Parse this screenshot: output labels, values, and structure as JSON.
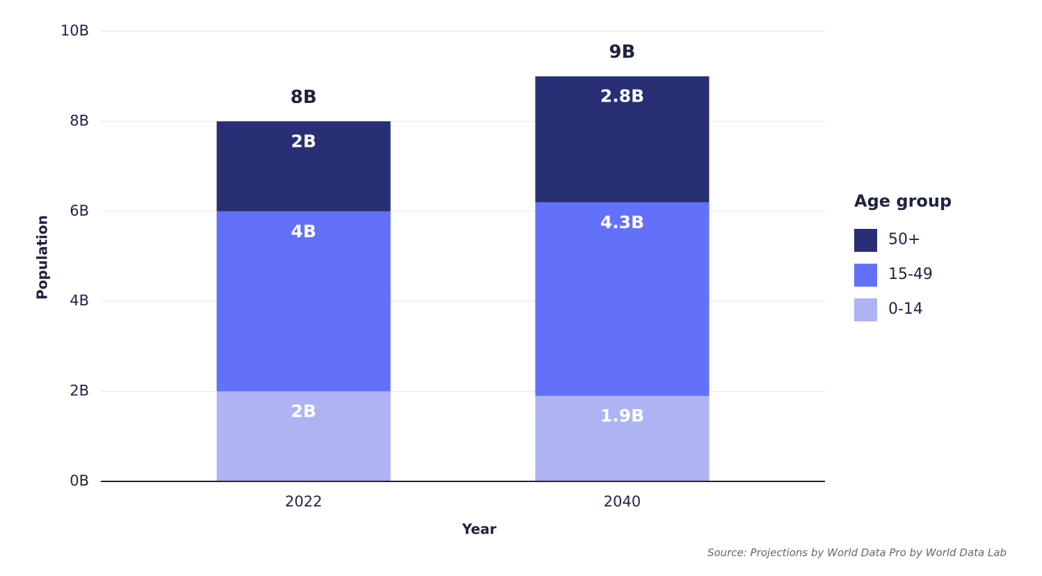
{
  "chart_data": {
    "type": "stacked_bar",
    "x_label": "Year",
    "y_label": "Population",
    "categories": [
      "2022",
      "2040"
    ],
    "series": [
      {
        "name": "0-14",
        "color": "#adb3f3",
        "values": [
          2,
          1.9
        ],
        "value_labels": [
          "2B",
          "1.9B"
        ]
      },
      {
        "name": "15-49",
        "color": "#6370f9",
        "values": [
          4,
          4.3
        ],
        "value_labels": [
          "4B",
          "4.3B"
        ]
      },
      {
        "name": "50+",
        "color": "#282f75",
        "values": [
          2,
          2.8
        ],
        "value_labels": [
          "2B",
          "2.8B"
        ]
      }
    ],
    "totals": {
      "values": [
        8,
        9
      ],
      "value_labels": [
        "8B",
        "9B"
      ]
    },
    "ylim": [
      0,
      10
    ],
    "yticks": [
      {
        "value": 0,
        "label": "0B"
      },
      {
        "value": 2,
        "label": "2B"
      },
      {
        "value": 4,
        "label": "4B"
      },
      {
        "value": 6,
        "label": "6B"
      },
      {
        "value": 8,
        "label": "8B"
      },
      {
        "value": 10,
        "label": "10B"
      }
    ],
    "grid": true,
    "legend_title": "Age group",
    "legend_position": "right",
    "source": "Source: Projections by World Data Pro by World Data Lab"
  }
}
